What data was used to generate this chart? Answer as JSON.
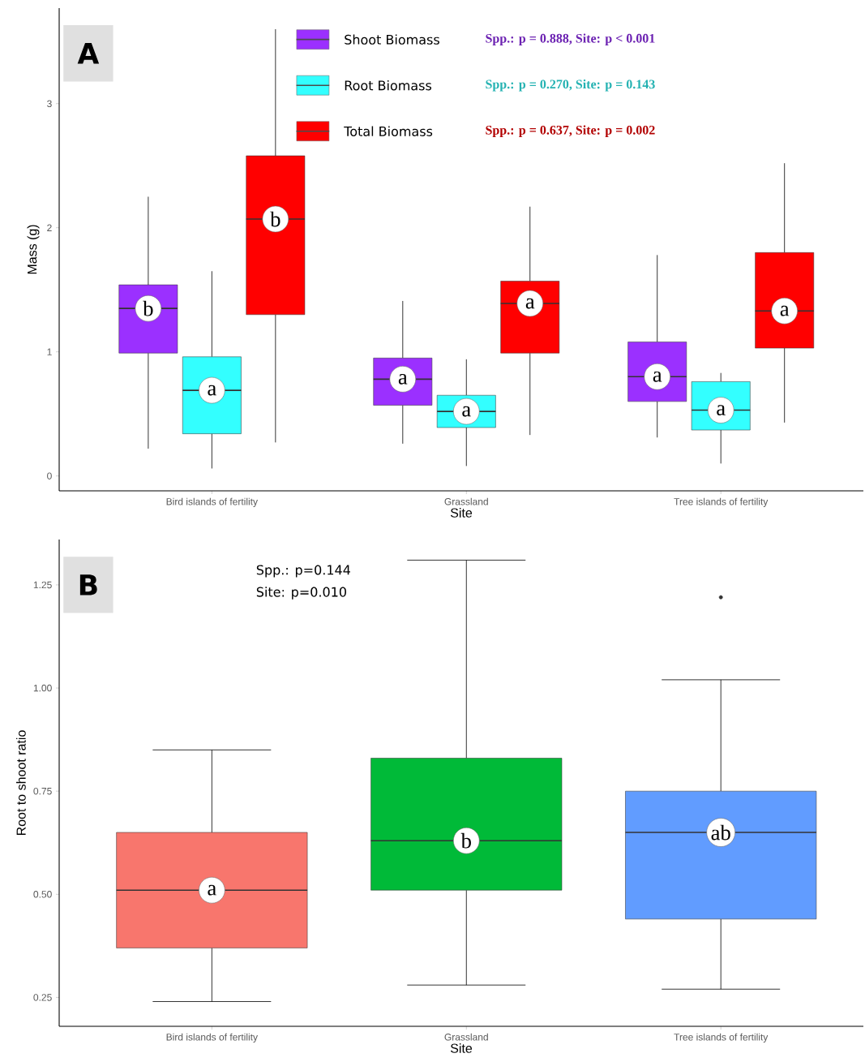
{
  "chart_data": [
    {
      "type": "box",
      "title": "A",
      "xlabel": "Site",
      "ylabel": "Mass (g)",
      "categories": [
        "Bird islands of fertility",
        "Grassland",
        "Tree islands of fertility"
      ],
      "ylim": [
        -0.12,
        3.77
      ],
      "yticks": [
        0,
        1,
        2,
        3
      ],
      "legend": "top",
      "series": [
        {
          "name": "Shoot Biomass",
          "color": "#9b30ff",
          "boxes": [
            {
              "low": 0.22,
              "q1": 0.99,
              "median": 1.35,
              "q3": 1.54,
              "high": 2.25
            },
            {
              "low": 0.26,
              "q1": 0.57,
              "median": 0.78,
              "q3": 0.95,
              "high": 1.41
            },
            {
              "low": 0.31,
              "q1": 0.6,
              "median": 0.8,
              "q3": 1.08,
              "high": 1.78
            }
          ]
        },
        {
          "name": "Root Biomass",
          "color": "#33ffff",
          "boxes": [
            {
              "low": 0.06,
              "q1": 0.34,
              "median": 0.69,
              "q3": 0.96,
              "high": 1.65
            },
            {
              "low": 0.08,
              "q1": 0.39,
              "median": 0.52,
              "q3": 0.65,
              "high": 0.94
            },
            {
              "low": 0.1,
              "q1": 0.37,
              "median": 0.53,
              "q3": 0.76,
              "high": 0.83
            }
          ]
        },
        {
          "name": "Total Biomass",
          "color": "#ff0000",
          "boxes": [
            {
              "low": 0.27,
              "q1": 1.3,
              "median": 2.07,
              "q3": 2.58,
              "high": 3.6
            },
            {
              "low": 0.33,
              "q1": 0.99,
              "median": 1.39,
              "q3": 1.57,
              "high": 2.17
            },
            {
              "low": 0.43,
              "q1": 1.03,
              "median": 1.33,
              "q3": 1.8,
              "high": 2.52
            }
          ]
        }
      ],
      "annotations": [
        "Spp.: p = 0.888, Site: p < 0.001",
        "Spp.: p = 0.270, Site: p = 0.143",
        "Spp.: p = 0.637, Site: p = 0.002",
        "b",
        "a",
        "b",
        "a",
        "a",
        "a",
        "a",
        "a",
        "a"
      ]
    },
    {
      "type": "box",
      "title": "B",
      "xlabel": "Site",
      "ylabel": "Root to shoot ratio",
      "categories": [
        "Bird islands of fertility",
        "Grassland",
        "Tree islands of fertility"
      ],
      "ylim": [
        0.18,
        1.36
      ],
      "yticks": [
        {
          "value": 0.25,
          "label": "0.25"
        },
        {
          "value": 0.5,
          "label": "0.50"
        },
        {
          "value": 0.75,
          "label": "0.75"
        },
        {
          "value": 1.0,
          "label": "1.00"
        },
        {
          "value": 1.25,
          "label": "1.25"
        }
      ],
      "colors": [
        "#f8766d",
        "#00ba38",
        "#619cff"
      ],
      "boxes": [
        {
          "low": 0.24,
          "q1": 0.37,
          "median": 0.51,
          "q3": 0.65,
          "high": 0.85
        },
        {
          "low": 0.28,
          "q1": 0.51,
          "median": 0.63,
          "q3": 0.83,
          "high": 1.31
        },
        {
          "low": 0.27,
          "q1": 0.44,
          "median": 0.65,
          "q3": 0.75,
          "high": 1.02,
          "outliers": [
            1.22
          ]
        }
      ],
      "annotations": [
        "Spp.: p=0.144",
        "Site: p=0.010",
        "a",
        "b",
        "ab"
      ]
    }
  ]
}
